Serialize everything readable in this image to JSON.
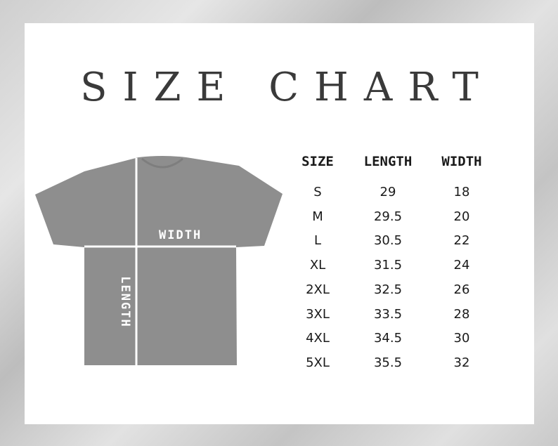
{
  "title": "SIZE CHART",
  "diagram": {
    "width_label": "WIDTH",
    "length_label": "LENGTH",
    "shirt_color": "#8e8e8e"
  },
  "table": {
    "headers": [
      "SIZE",
      "LENGTH",
      "WIDTH"
    ],
    "rows": [
      [
        "S",
        "29",
        "18"
      ],
      [
        "M",
        "29.5",
        "20"
      ],
      [
        "L",
        "30.5",
        "22"
      ],
      [
        "XL",
        "31.5",
        "24"
      ],
      [
        "2XL",
        "32.5",
        "26"
      ],
      [
        "3XL",
        "33.5",
        "28"
      ],
      [
        "4XL",
        "34.5",
        "30"
      ],
      [
        "5XL",
        "35.5",
        "32"
      ]
    ]
  }
}
